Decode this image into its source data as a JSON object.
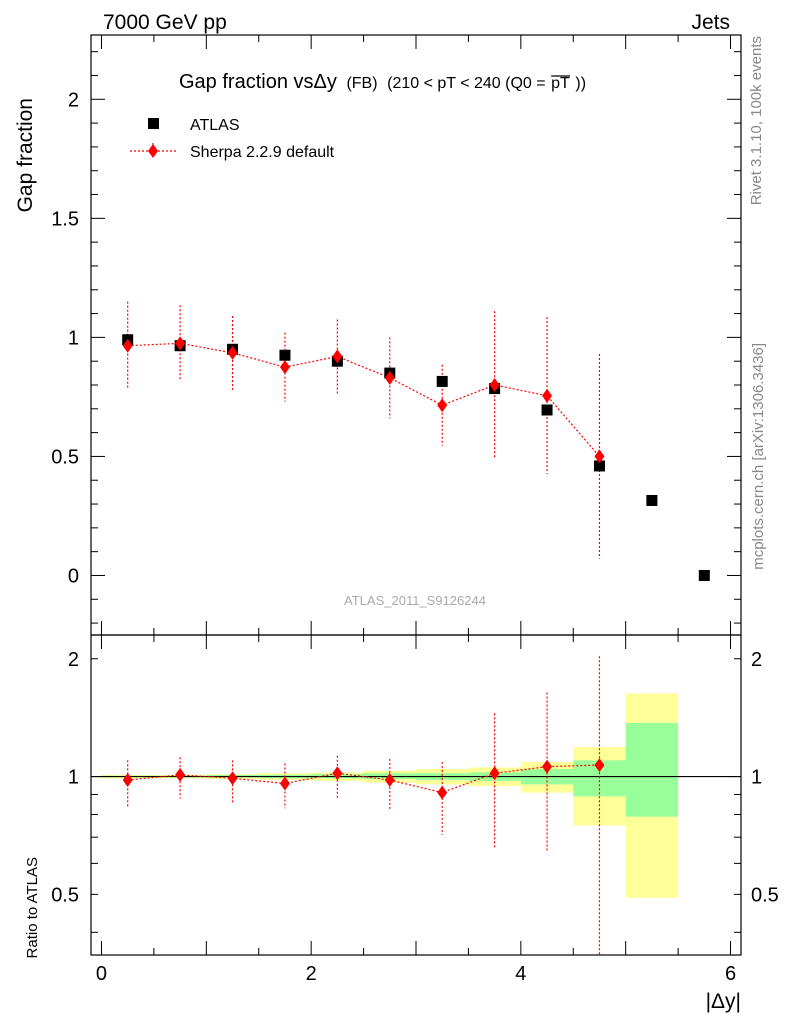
{
  "header": {
    "left": "7000 GeV pp",
    "right": "Jets"
  },
  "title": {
    "main": "Gap fraction vsΔy",
    "fb": "(FB)",
    "range": "(210 < pT < 240 (Q0 =",
    "pt": "pT",
    "close": "))"
  },
  "side": {
    "rivet": "Rivet 3.1.10,  100k events",
    "mcplots": "mcplots.cern.ch [arXiv:1306.3436]"
  },
  "watermark": "ATLAS_2011_S9126244",
  "legend": {
    "atlas": "ATLAS",
    "sherpa": "Sherpa 2.2.9 default"
  },
  "chart_data": {
    "type": "scatter",
    "main": {
      "ylabel": "Gap fraction",
      "ylim": [
        -0.25,
        2.27
      ],
      "yticks": [
        0,
        0.5,
        1,
        1.5,
        2
      ],
      "ytick_labels": [
        "0",
        "0.5",
        "1",
        "1.5",
        "2"
      ]
    },
    "ratio": {
      "ylabel": "Ratio to ATLAS",
      "ylim": [
        0.35,
        2.3
      ],
      "yticks": [
        0.5,
        1,
        2
      ],
      "ytick_labels": [
        "0.5",
        "1",
        "2"
      ]
    },
    "x": {
      "label": "|Δy|",
      "xlim": [
        -0.1,
        6.1
      ],
      "xticks": [
        0,
        2,
        4,
        6
      ],
      "xtick_labels": [
        "0",
        "2",
        "4",
        "6"
      ]
    },
    "series": [
      {
        "name": "ATLAS",
        "color": "#000000",
        "marker": "square",
        "x": [
          0.25,
          0.75,
          1.25,
          1.75,
          2.25,
          2.75,
          3.25,
          3.75,
          4.25,
          4.75,
          5.25,
          5.75
        ],
        "y": [
          0.99,
          0.965,
          0.95,
          0.925,
          0.9,
          0.85,
          0.815,
          0.785,
          0.695,
          0.46,
          0.315,
          0.0
        ]
      },
      {
        "name": "Sherpa 2.2.9 default",
        "color": "#ff0000",
        "marker": "diamond",
        "x": [
          0.25,
          0.75,
          1.25,
          1.75,
          2.25,
          2.75,
          3.25,
          3.75,
          4.25,
          4.75
        ],
        "y": [
          0.965,
          0.975,
          0.935,
          0.875,
          0.92,
          0.83,
          0.715,
          0.8,
          0.755,
          0.5
        ],
        "err": [
          0.185,
          0.16,
          0.155,
          0.145,
          0.155,
          0.17,
          0.17,
          0.31,
          0.33,
          0.43
        ],
        "ratio": [
          0.98,
          1.01,
          0.99,
          0.96,
          1.02,
          0.98,
          0.91,
          1.02,
          1.06,
          1.07
        ],
        "ratio_lo": [
          0.83,
          0.88,
          0.86,
          0.83,
          0.88,
          0.82,
          0.71,
          0.66,
          0.64,
          0.34
        ],
        "ratio_hi": [
          1.1,
          1.12,
          1.1,
          1.08,
          1.13,
          1.11,
          1.09,
          1.45,
          1.64,
          2.03
        ]
      }
    ],
    "ratio_bands": {
      "x_edges": [
        0,
        0.5,
        1,
        1.5,
        2,
        2.5,
        3,
        3.5,
        4,
        4.5,
        5,
        5.5
      ],
      "green_lo": [
        0.995,
        0.995,
        0.995,
        0.99,
        0.99,
        0.985,
        0.98,
        0.975,
        0.955,
        0.89,
        0.79
      ],
      "green_hi": [
        1.005,
        1.005,
        1.01,
        1.01,
        1.015,
        1.02,
        1.02,
        1.025,
        1.045,
        1.1,
        1.37
      ],
      "yellow_lo": [
        0.99,
        0.99,
        0.985,
        0.98,
        0.975,
        0.965,
        0.955,
        0.945,
        0.91,
        0.75,
        0.49
      ],
      "yellow_hi": [
        1.01,
        1.01,
        1.015,
        1.02,
        1.025,
        1.035,
        1.045,
        1.055,
        1.09,
        1.19,
        1.63
      ],
      "green_color": "#99ff99",
      "yellow_color": "#ffff99"
    }
  }
}
